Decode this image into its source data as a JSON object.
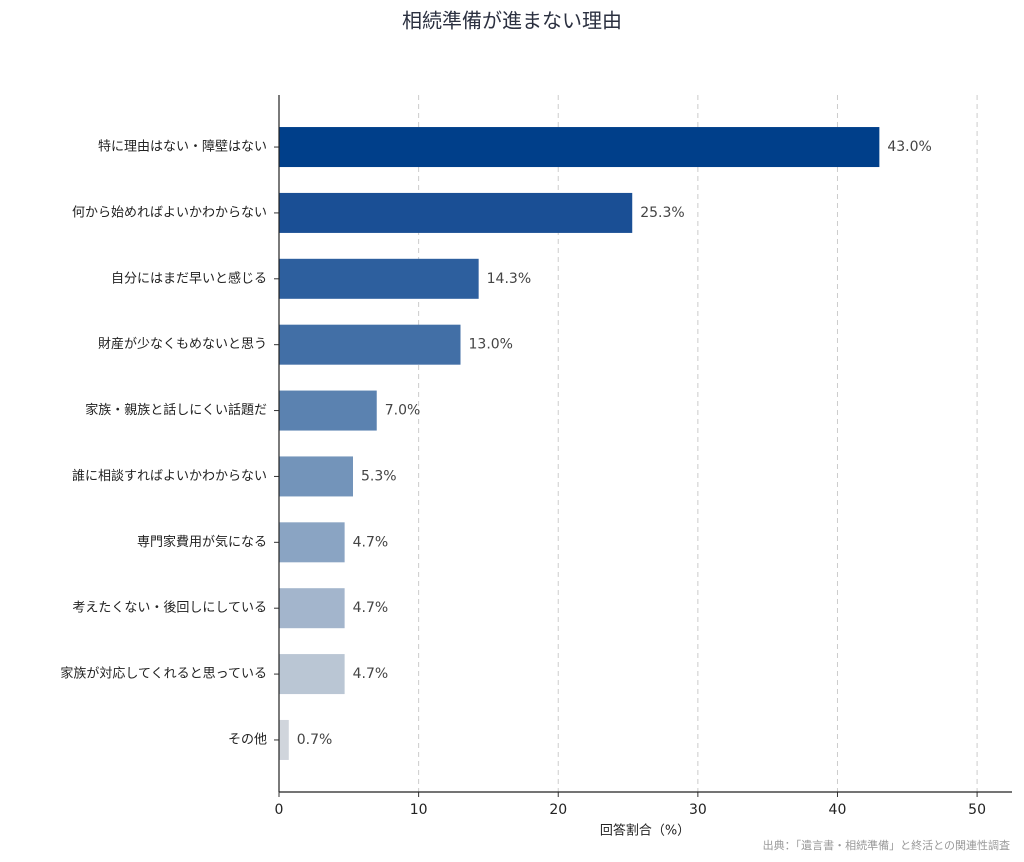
{
  "chart_data": {
    "type": "bar",
    "orientation": "horizontal",
    "title": "相続準備が進まない理由",
    "xlabel": "回答割合（%）",
    "source": "出典：「遺言書・相続準備」と終活との関連性調査",
    "categories": [
      "特に理由はない・障壁はない",
      "何から始めればよいかわからない",
      "自分にはまだ早いと感じる",
      "財産が少なくもめないと思う",
      "家族・親族と話しにくい話題だ",
      "誰に相談すればよいかわからない",
      "専門家費用が気になる",
      "考えたくない・後回しにしている",
      "家族が対応してくれると思っている",
      "その他"
    ],
    "values": [
      43.0,
      25.3,
      14.3,
      13.0,
      7.0,
      5.3,
      4.7,
      4.7,
      4.7,
      0.7
    ],
    "value_labels": [
      "43.0%",
      "25.3%",
      "14.3%",
      "13.0%",
      "7.0%",
      "5.3%",
      "4.7%",
      "4.7%",
      "4.7%",
      "0.7%"
    ],
    "colors": [
      "#003f8a",
      "#1a4f95",
      "#2d5f9e",
      "#426fa6",
      "#5b82b0",
      "#7394ba",
      "#8aa4c3",
      "#a3b5cc",
      "#bac6d4",
      "#d0d5dc"
    ],
    "xlim": [
      0,
      52.5
    ],
    "xticks": [
      0,
      10,
      20,
      30,
      40,
      50
    ],
    "grid": true
  }
}
